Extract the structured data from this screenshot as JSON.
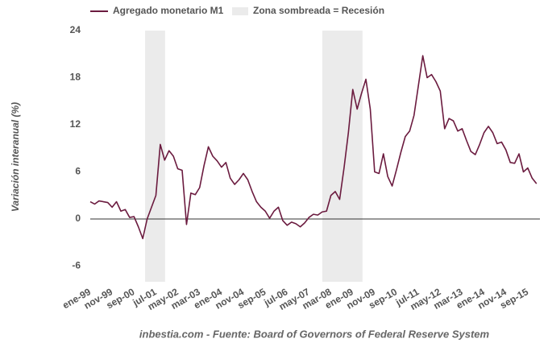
{
  "chart_data": {
    "type": "line",
    "source": "inbestia.com - Fuente: Board of Governors of Federal Reserve System",
    "y_label": "Variación interanual (%)",
    "shaded_label": "Zona sombreada = Recesión",
    "shaded_color": "#ebebeb",
    "shaded_regions": [
      [
        2001.09,
        2001.85
      ],
      [
        2007.84,
        2009.37
      ]
    ],
    "x": [
      1999,
      1999.167,
      1999.333,
      1999.5,
      1999.667,
      1999.833,
      2000,
      2000.167,
      2000.333,
      2000.5,
      2000.667,
      2000.833,
      2001,
      2001.167,
      2001.333,
      2001.5,
      2001.667,
      2001.833,
      2002,
      2002.167,
      2002.333,
      2002.5,
      2002.667,
      2002.833,
      2003,
      2003.167,
      2003.333,
      2003.5,
      2003.667,
      2003.833,
      2004,
      2004.167,
      2004.333,
      2004.5,
      2004.667,
      2004.833,
      2005,
      2005.167,
      2005.333,
      2005.5,
      2005.667,
      2005.833,
      2006,
      2006.167,
      2006.333,
      2006.5,
      2006.667,
      2006.833,
      2007,
      2007.167,
      2007.333,
      2007.5,
      2007.667,
      2007.833,
      2008,
      2008.167,
      2008.333,
      2008.5,
      2008.667,
      2008.833,
      2009,
      2009.167,
      2009.333,
      2009.5,
      2009.667,
      2009.833,
      2010,
      2010.167,
      2010.333,
      2010.5,
      2010.667,
      2010.833,
      2011,
      2011.167,
      2011.333,
      2011.5,
      2011.667,
      2011.833,
      2012,
      2012.167,
      2012.333,
      2012.5,
      2012.667,
      2012.833,
      2013,
      2013.167,
      2013.333,
      2013.5,
      2013.667,
      2013.833,
      2014,
      2014.167,
      2014.333,
      2014.5,
      2014.667,
      2014.833,
      2015,
      2015.167,
      2015.333,
      2015.5,
      2015.667,
      2015.833,
      2016
    ],
    "series": [
      {
        "name": "Agregado monetario M1",
        "color": "#6b1b3f",
        "values": [
          2.2,
          1.9,
          2.3,
          2.2,
          2.1,
          1.5,
          2.2,
          1.0,
          1.2,
          0.2,
          0.3,
          -1.0,
          -2.5,
          0,
          1.5,
          3.0,
          9.5,
          7.5,
          8.7,
          8.0,
          6.4,
          6.2,
          -0.7,
          3.3,
          3.1,
          4.0,
          6.8,
          9.2,
          8.0,
          7.4,
          6.6,
          7.2,
          5.2,
          4.4,
          5.0,
          5.8,
          5.0,
          3.5,
          2.2,
          1.5,
          1.0,
          0.1,
          1.0,
          1.5,
          -0.2,
          -0.8,
          -0.4,
          -0.6,
          -1.0,
          -0.5,
          0.2,
          0.6,
          0.5,
          0.9,
          1.0,
          3.0,
          3.5,
          2.5,
          6.5,
          11,
          16.5,
          14,
          16,
          17.8,
          14,
          6,
          5.8,
          8.3,
          5.4,
          4.2,
          6.3,
          8.5,
          10.5,
          11.2,
          13.2,
          17,
          20.8,
          18,
          18.4,
          17.5,
          16.3,
          11.5,
          12.8,
          12.5,
          11.2,
          11.5,
          10,
          8.6,
          8.2,
          9.5,
          11,
          11.8,
          11,
          9.6,
          9.8,
          8.8,
          7.2,
          7.1,
          8.3,
          6.0,
          6.5,
          5.2,
          4.5
        ]
      }
    ],
    "xlim": [
      1999,
      2016.13
    ],
    "xticks": [
      {
        "value": 1999,
        "label": "ene-99"
      },
      {
        "value": 1999.833,
        "label": "nov-99"
      },
      {
        "value": 2000.667,
        "label": "sep-00"
      },
      {
        "value": 2001.5,
        "label": "jul-01"
      },
      {
        "value": 2002.333,
        "label": "may-02"
      },
      {
        "value": 2003.167,
        "label": "mar-03"
      },
      {
        "value": 2004,
        "label": "ene-04"
      },
      {
        "value": 2004.833,
        "label": "nov-04"
      },
      {
        "value": 2005.667,
        "label": "sep-05"
      },
      {
        "value": 2006.5,
        "label": "jul-06"
      },
      {
        "value": 2007.333,
        "label": "may-07"
      },
      {
        "value": 2008.167,
        "label": "mar-08"
      },
      {
        "value": 2009,
        "label": "ene-09"
      },
      {
        "value": 2009.833,
        "label": "nov-09"
      },
      {
        "value": 2010.667,
        "label": "sep-10"
      },
      {
        "value": 2011.5,
        "label": "jul-11"
      },
      {
        "value": 2012.333,
        "label": "may-12"
      },
      {
        "value": 2013.167,
        "label": "mar-13"
      },
      {
        "value": 2014,
        "label": "ene-14"
      },
      {
        "value": 2014.833,
        "label": "nov-14"
      },
      {
        "value": 2015.667,
        "label": "sep-15"
      }
    ],
    "ylim": [
      -8,
      24
    ],
    "yticks": [
      -6,
      0,
      6,
      12,
      18,
      24
    ],
    "grid": false
  }
}
